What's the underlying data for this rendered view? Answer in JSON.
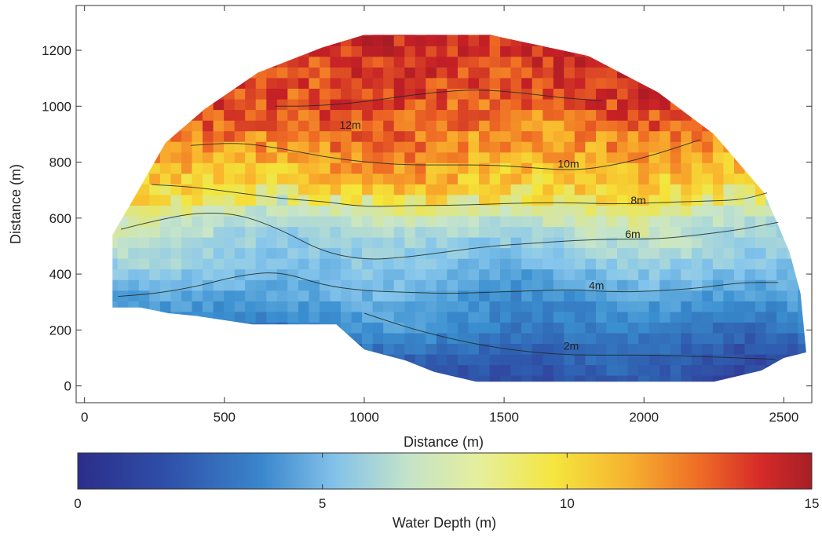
{
  "chart_data": [
    {
      "type": "heatmap",
      "subtype": "gridded map with contour lines",
      "xlabel": "Distance (m)",
      "ylabel": "Distance (m)",
      "xlim": [
        -30,
        2600
      ],
      "ylim": [
        -60,
        1360
      ],
      "x_ticks": [
        0,
        500,
        1000,
        1500,
        2000,
        2500
      ],
      "y_ticks": [
        0,
        200,
        400,
        600,
        800,
        1000,
        1200
      ],
      "x_tick_labels": [
        "0",
        "500",
        "1000",
        "1500",
        "2000",
        "2500"
      ],
      "y_tick_labels": [
        "0",
        "200",
        "400",
        "600",
        "800",
        "1000",
        "1200"
      ],
      "grid": false,
      "cell_size_m": 38,
      "colormap": [
        "#313695",
        "#2f5fb0",
        "#3a8fd0",
        "#86c6ec",
        "#c9e6c8",
        "#f4e63a",
        "#f9b52d",
        "#ef6a24",
        "#c62026",
        "#9e1b25"
      ],
      "domain_outline": [
        [
          100,
          280
        ],
        [
          100,
          540
        ],
        [
          170,
          660
        ],
        [
          290,
          870
        ],
        [
          430,
          990
        ],
        [
          620,
          1120
        ],
        [
          850,
          1210
        ],
        [
          1000,
          1255
        ],
        [
          1450,
          1255
        ],
        [
          1800,
          1180
        ],
        [
          2050,
          1050
        ],
        [
          2250,
          900
        ],
        [
          2430,
          690
        ],
        [
          2520,
          480
        ],
        [
          2560,
          330
        ],
        [
          2580,
          120
        ],
        [
          2500,
          100
        ],
        [
          2420,
          55
        ],
        [
          2250,
          15
        ],
        [
          1800,
          15
        ],
        [
          1400,
          15
        ],
        [
          1250,
          50
        ],
        [
          1150,
          90
        ],
        [
          1000,
          130
        ],
        [
          900,
          220
        ],
        [
          600,
          220
        ],
        [
          400,
          250
        ],
        [
          300,
          260
        ],
        [
          200,
          280
        ]
      ],
      "contours": [
        {
          "label": "2m",
          "level": 2,
          "points": [
            [
              1000,
              260
            ],
            [
              1150,
              210
            ],
            [
              1300,
              170
            ],
            [
              1450,
              140
            ],
            [
              1600,
              120
            ],
            [
              1750,
              110
            ],
            [
              1900,
              110
            ],
            [
              2050,
              110
            ],
            [
              2200,
              105
            ],
            [
              2350,
              100
            ],
            [
              2470,
              95
            ]
          ]
        },
        {
          "label": "4m",
          "level": 4,
          "points": [
            [
              120,
              320
            ],
            [
              250,
              330
            ],
            [
              400,
              355
            ],
            [
              550,
              395
            ],
            [
              700,
              410
            ],
            [
              850,
              360
            ],
            [
              1000,
              340
            ],
            [
              1150,
              335
            ],
            [
              1300,
              330
            ],
            [
              1450,
              335
            ],
            [
              1600,
              340
            ],
            [
              1750,
              345
            ],
            [
              1900,
              335
            ],
            [
              2050,
              340
            ],
            [
              2200,
              350
            ],
            [
              2350,
              370
            ],
            [
              2480,
              370
            ]
          ]
        },
        {
          "label": "6m",
          "level": 6,
          "points": [
            [
              130,
              560
            ],
            [
              250,
              590
            ],
            [
              400,
              620
            ],
            [
              550,
              615
            ],
            [
              700,
              560
            ],
            [
              850,
              480
            ],
            [
              1000,
              450
            ],
            [
              1150,
              460
            ],
            [
              1300,
              480
            ],
            [
              1450,
              500
            ],
            [
              1600,
              510
            ],
            [
              1750,
              520
            ],
            [
              1900,
              525
            ],
            [
              2050,
              525
            ],
            [
              2200,
              540
            ],
            [
              2350,
              560
            ],
            [
              2480,
              585
            ]
          ]
        },
        {
          "label": "8m",
          "level": 8,
          "points": [
            [
              240,
              720
            ],
            [
              400,
              710
            ],
            [
              550,
              690
            ],
            [
              700,
              670
            ],
            [
              850,
              660
            ],
            [
              1000,
              640
            ],
            [
              1150,
              645
            ],
            [
              1300,
              645
            ],
            [
              1450,
              650
            ],
            [
              1600,
              655
            ],
            [
              1750,
              655
            ],
            [
              1900,
              650
            ],
            [
              2050,
              655
            ],
            [
              2200,
              660
            ],
            [
              2350,
              665
            ],
            [
              2440,
              690
            ]
          ]
        },
        {
          "label": "10m",
          "level": 10,
          "points": [
            [
              380,
              860
            ],
            [
              550,
              870
            ],
            [
              700,
              850
            ],
            [
              850,
              820
            ],
            [
              1000,
              800
            ],
            [
              1150,
              790
            ],
            [
              1300,
              790
            ],
            [
              1450,
              790
            ],
            [
              1600,
              780
            ],
            [
              1750,
              770
            ],
            [
              1900,
              790
            ],
            [
              2050,
              830
            ],
            [
              2200,
              880
            ]
          ]
        },
        {
          "label": "12m",
          "level": 12,
          "points": [
            [
              680,
              1000
            ],
            [
              800,
              1000
            ],
            [
              950,
              1010
            ],
            [
              1100,
              1030
            ],
            [
              1250,
              1050
            ],
            [
              1400,
              1060
            ],
            [
              1550,
              1050
            ],
            [
              1700,
              1030
            ],
            [
              1850,
              1020
            ]
          ]
        }
      ],
      "contour_label_positions": [
        {
          "label": "12m",
          "x": 950,
          "y": 920
        },
        {
          "label": "10m",
          "x": 1730,
          "y": 780
        },
        {
          "label": "8m",
          "x": 1980,
          "y": 650
        },
        {
          "label": "6m",
          "x": 1960,
          "y": 530
        },
        {
          "label": "4m",
          "x": 1830,
          "y": 345
        },
        {
          "label": "2m",
          "x": 1740,
          "y": 130
        }
      ],
      "depth_model": {
        "min": 0,
        "max": 15,
        "trend_nodes_y": [
          0,
          100,
          200,
          300,
          400,
          500,
          600,
          700,
          800,
          900,
          1000,
          1100,
          1200,
          1260
        ],
        "trend_depth": [
          0.8,
          1.5,
          2.8,
          3.7,
          4.6,
          5.6,
          6.6,
          8.8,
          10.2,
          11.3,
          12.2,
          12.8,
          12.9,
          13.0
        ]
      }
    },
    {
      "type": "heatmap",
      "subtype": "colorbar",
      "xlabel": "Water Depth (m)",
      "xlim": [
        0,
        15
      ],
      "x_ticks": [
        0,
        5,
        10,
        15
      ],
      "x_tick_labels": [
        "0",
        "5",
        "10",
        "15"
      ]
    }
  ]
}
